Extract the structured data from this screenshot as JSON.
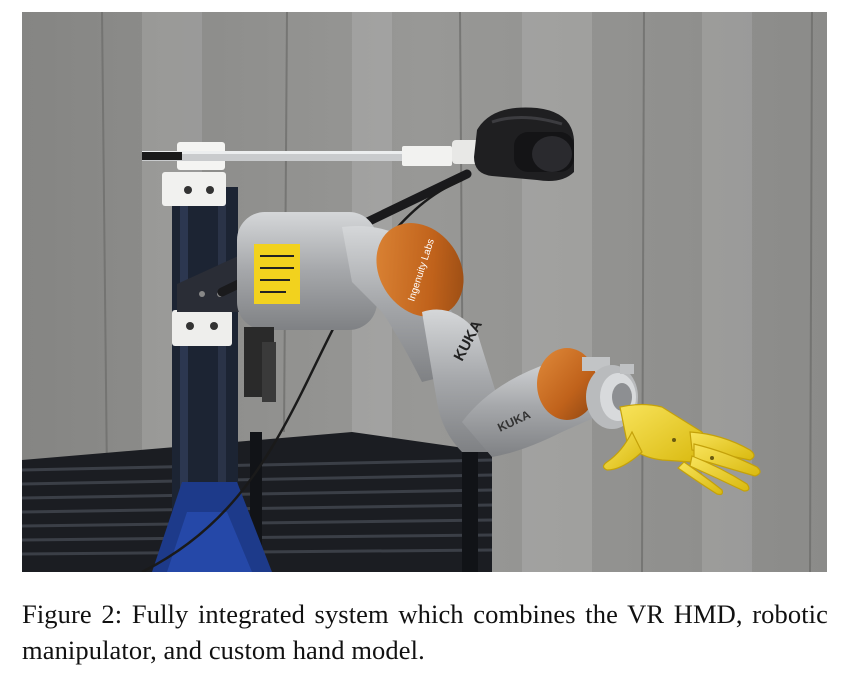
{
  "figure": {
    "label": "Figure 2:",
    "caption": "Fully integrated system which combines the VR HMD, robotic manipulator, and custom hand model."
  },
  "photo": {
    "robot_brand_text": "KUKA",
    "joint_logo_text": "Ingenuity Labs",
    "colors": {
      "wall": "#8f8f8d",
      "robot_body": "#a9abad",
      "robot_joint": "#c86a1e",
      "hand": "#f1d321",
      "stand": "#1c2433",
      "headset": "#1f1f21"
    }
  }
}
